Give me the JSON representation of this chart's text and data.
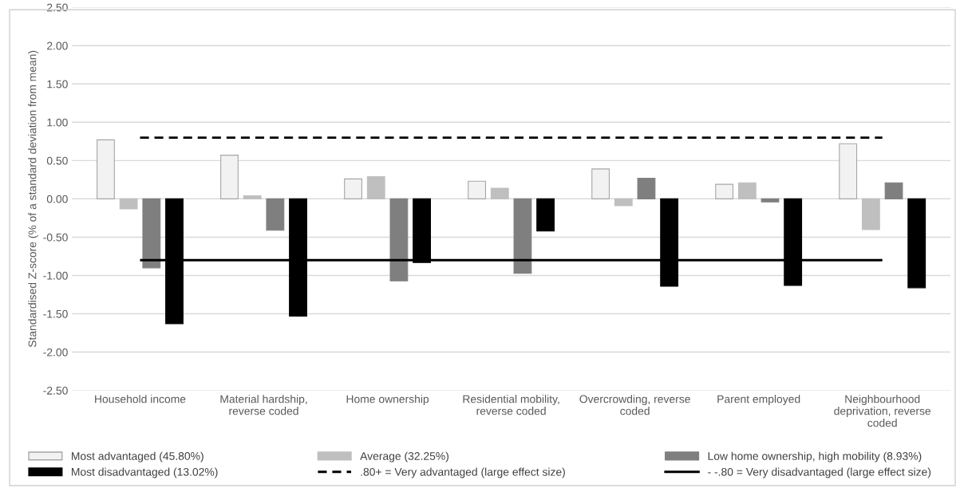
{
  "chart_data": {
    "type": "bar",
    "ylabel": "Standardised Z-score (% of a standard deviation from mean)",
    "categories": [
      "Household income",
      "Material hardship,\nreverse coded",
      "Home ownership",
      "Residential mobility,\nreverse coded",
      "Overcrowding, reverse\ncoded",
      "Parent employed",
      "Neighbourhood\ndeprivation, reverse\ncoded"
    ],
    "series": [
      {
        "name": "Most advantaged (45.80%)",
        "color": "#f2f2f2",
        "values": [
          0.77,
          0.57,
          0.26,
          0.23,
          0.39,
          0.19,
          0.72
        ]
      },
      {
        "name": "Average (32.25%)",
        "color": "#bfbfbf",
        "values": [
          -0.13,
          0.04,
          0.29,
          0.14,
          -0.09,
          0.21,
          -0.4
        ]
      },
      {
        "name": "Low home ownership, high mobility (8.93%)",
        "color": "#7f7f7f",
        "values": [
          -0.9,
          -0.41,
          -1.07,
          -0.97,
          0.27,
          -0.04,
          0.21
        ]
      },
      {
        "name": "Most disadvantaged (13.02%)",
        "color": "#000000",
        "values": [
          -1.63,
          -1.53,
          -0.83,
          -0.42,
          -1.14,
          -1.13,
          -1.16
        ]
      }
    ],
    "ref_lines": [
      {
        "axis": "y",
        "value": 0.8,
        "label": ".80+ = Very advantaged (large effect size)",
        "color": "#000000",
        "line_style": "dashed"
      },
      {
        "axis": "y",
        "value": -0.8,
        "label": "- -.80 = Very disadvantaged (large effect size)",
        "color": "#000000",
        "line_style": "solid"
      }
    ],
    "ylim": [
      -2.5,
      2.5
    ],
    "yticks": [
      {
        "value": 2.5,
        "label": "2.50"
      },
      {
        "value": 2.0,
        "label": "2.00"
      },
      {
        "value": 1.5,
        "label": "1.50"
      },
      {
        "value": 1.0,
        "label": "1.00"
      },
      {
        "value": 0.5,
        "label": "0.50"
      },
      {
        "value": 0,
        "label": "0.00"
      },
      {
        "value": -0.5,
        "label": "-0.50"
      },
      {
        "value": -1.0,
        "label": "-1.00"
      },
      {
        "value": -1.5,
        "label": "-1.50"
      },
      {
        "value": -2.0,
        "label": "-2.00"
      },
      {
        "value": -2.5,
        "label": "-2.50"
      }
    ],
    "grid": "y",
    "legend": "bottom"
  }
}
